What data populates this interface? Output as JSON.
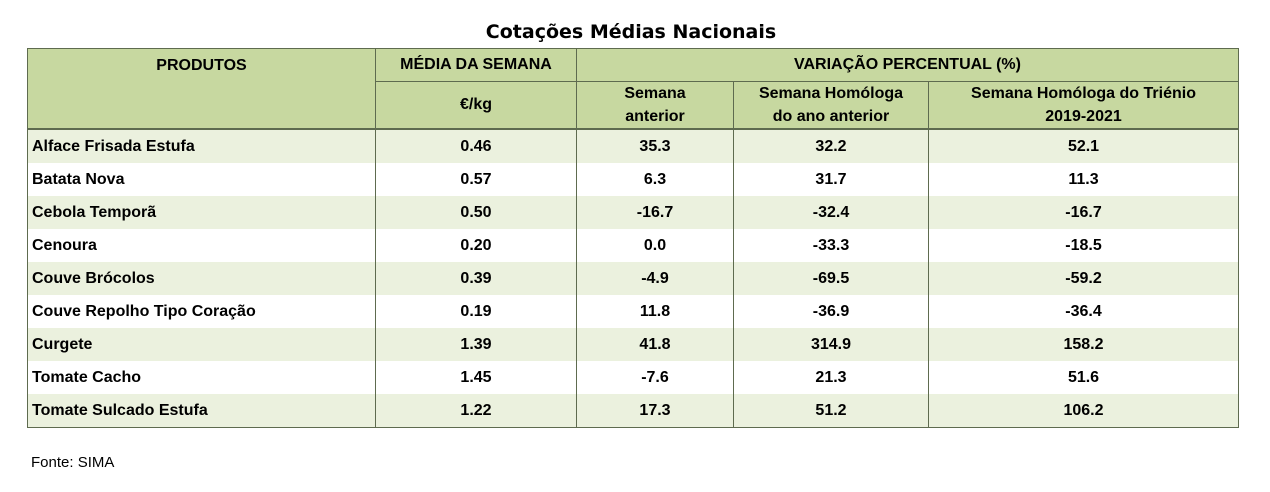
{
  "title": "Cotações Médias Nacionais",
  "headers": {
    "produtos": "PRODUTOS",
    "media": "MÉDIA DA SEMANA",
    "unit": "€/kg",
    "variacao": "VARIAÇÃO PERCENTUAL (%)",
    "semana_anterior_l1": "Semana",
    "semana_anterior_l2": "anterior",
    "homologa_l1": "Semana Homóloga",
    "homologa_l2": "do ano anterior",
    "trienio_l1": "Semana Homóloga do Triénio",
    "trienio_l2": "2019-2021"
  },
  "rows": [
    {
      "produto": "Alface Frisada Estufa",
      "media": "0.46",
      "anterior": "35.3",
      "homologa": "32.2",
      "trienio": "52.1"
    },
    {
      "produto": "Batata Nova",
      "media": "0.57",
      "anterior": "6.3",
      "homologa": "31.7",
      "trienio": "11.3"
    },
    {
      "produto": "Cebola Temporã",
      "media": "0.50",
      "anterior": "-16.7",
      "homologa": "-32.4",
      "trienio": "-16.7"
    },
    {
      "produto": "Cenoura",
      "media": "0.20",
      "anterior": "0.0",
      "homologa": "-33.3",
      "trienio": "-18.5"
    },
    {
      "produto": "Couve Brócolos",
      "media": "0.39",
      "anterior": "-4.9",
      "homologa": "-69.5",
      "trienio": "-59.2"
    },
    {
      "produto": "Couve Repolho Tipo Coração",
      "media": "0.19",
      "anterior": "11.8",
      "homologa": "-36.9",
      "trienio": "-36.4"
    },
    {
      "produto": "Curgete",
      "media": "1.39",
      "anterior": "41.8",
      "homologa": "314.9",
      "trienio": "158.2"
    },
    {
      "produto": "Tomate Cacho",
      "media": "1.45",
      "anterior": "-7.6",
      "homologa": "21.3",
      "trienio": "51.6"
    },
    {
      "produto": "Tomate Sulcado Estufa",
      "media": "1.22",
      "anterior": "17.3",
      "homologa": "51.2",
      "trienio": "106.2"
    }
  ],
  "source": "Fonte: SIMA"
}
